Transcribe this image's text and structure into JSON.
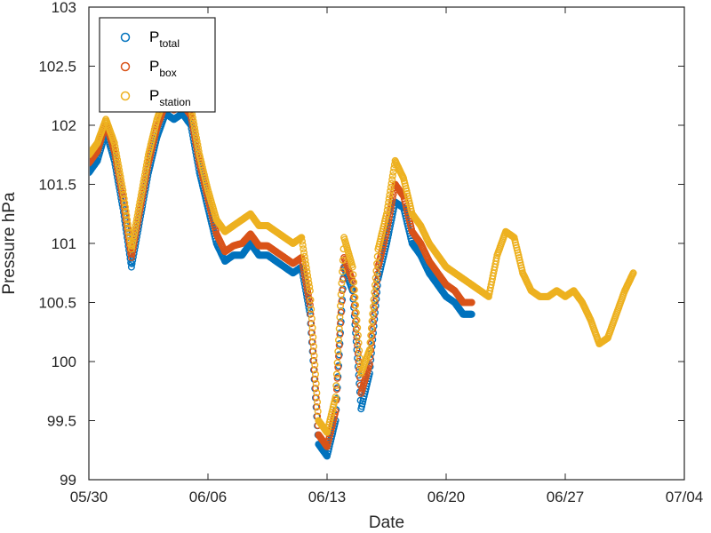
{
  "chart_data": {
    "type": "scatter",
    "xlabel": "Date",
    "ylabel": "Pressure hPa",
    "xlim": [
      "05/30",
      "07/04"
    ],
    "ylim": [
      99,
      103
    ],
    "x_ticks": [
      "05/30",
      "06/06",
      "06/13",
      "06/20",
      "06/27",
      "07/04"
    ],
    "y_ticks": [
      "99",
      "99.5",
      "100",
      "100.5",
      "101",
      "101.5",
      "102",
      "102.5",
      "103"
    ],
    "grid": false,
    "legend_position": "top-left",
    "marker": "open-circle",
    "series": [
      {
        "name": "P_total",
        "legend_main": "P",
        "legend_sub": "total",
        "color": "#0072BD",
        "points": [
          [
            "05/30",
            101.6
          ],
          [
            "05/30 12:00",
            101.7
          ],
          [
            "05/31",
            101.95
          ],
          [
            "05/31 12:00",
            101.7
          ],
          [
            "06/01",
            101.3
          ],
          [
            "06/01 12:00",
            100.8
          ],
          [
            "06/02",
            101.2
          ],
          [
            "06/02 12:00",
            101.6
          ],
          [
            "06/03",
            101.9
          ],
          [
            "06/03 12:00",
            102.1
          ],
          [
            "06/04",
            102.05
          ],
          [
            "06/04 12:00",
            102.1
          ],
          [
            "06/05",
            102.0
          ],
          [
            "06/05 12:00",
            101.6
          ],
          [
            "06/06",
            101.3
          ],
          [
            "06/06 12:00",
            101.0
          ],
          [
            "06/07",
            100.85
          ],
          [
            "06/07 12:00",
            100.9
          ],
          [
            "06/08",
            100.9
          ],
          [
            "06/08 12:00",
            101.0
          ],
          [
            "06/09",
            100.9
          ],
          [
            "06/09 12:00",
            100.9
          ],
          [
            "06/10",
            100.85
          ],
          [
            "06/10 12:00",
            100.8
          ],
          [
            "06/11",
            100.75
          ],
          [
            "06/11 12:00",
            100.8
          ],
          [
            "06/12",
            100.4
          ],
          [
            "06/12 12:00",
            99.3
          ],
          [
            "06/13",
            99.2
          ],
          [
            "06/13 12:00",
            99.5
          ],
          [
            "06/14",
            100.8
          ],
          [
            "06/14 12:00",
            100.6
          ],
          [
            "06/15",
            99.6
          ],
          [
            "06/15 12:00",
            99.9
          ],
          [
            "06/16",
            100.7
          ],
          [
            "06/16 12:00",
            101.0
          ],
          [
            "06/17",
            101.35
          ],
          [
            "06/17 12:00",
            101.3
          ],
          [
            "06/18",
            101.0
          ],
          [
            "06/18 12:00",
            100.9
          ],
          [
            "06/19",
            100.75
          ],
          [
            "06/19 12:00",
            100.65
          ],
          [
            "06/20",
            100.55
          ],
          [
            "06/20 12:00",
            100.5
          ],
          [
            "06/21",
            100.4
          ],
          [
            "06/21 12:00",
            100.4
          ]
        ]
      },
      {
        "name": "P_box",
        "legend_main": "P",
        "legend_sub": "box",
        "color": "#D95319",
        "points": [
          [
            "05/30",
            101.68
          ],
          [
            "05/30 12:00",
            101.78
          ],
          [
            "05/31",
            102.02
          ],
          [
            "05/31 12:00",
            101.78
          ],
          [
            "06/01",
            101.38
          ],
          [
            "06/01 12:00",
            100.88
          ],
          [
            "06/02",
            101.28
          ],
          [
            "06/02 12:00",
            101.68
          ],
          [
            "06/03",
            101.98
          ],
          [
            "06/03 12:00",
            102.18
          ],
          [
            "06/04",
            102.13
          ],
          [
            "06/04 12:00",
            102.18
          ],
          [
            "06/05",
            102.08
          ],
          [
            "06/05 12:00",
            101.68
          ],
          [
            "06/06",
            101.38
          ],
          [
            "06/06 12:00",
            101.08
          ],
          [
            "06/07",
            100.93
          ],
          [
            "06/07 12:00",
            100.98
          ],
          [
            "06/08",
            101.0
          ],
          [
            "06/08 12:00",
            101.08
          ],
          [
            "06/09",
            100.98
          ],
          [
            "06/09 12:00",
            100.98
          ],
          [
            "06/10",
            100.93
          ],
          [
            "06/10 12:00",
            100.88
          ],
          [
            "06/11",
            100.83
          ],
          [
            "06/11 12:00",
            100.88
          ],
          [
            "06/12",
            100.48
          ],
          [
            "06/12 12:00",
            99.38
          ],
          [
            "06/13",
            99.28
          ],
          [
            "06/13 12:00",
            99.58
          ],
          [
            "06/14",
            100.88
          ],
          [
            "06/14 12:00",
            100.68
          ],
          [
            "06/15",
            99.73
          ],
          [
            "06/15 12:00",
            99.98
          ],
          [
            "06/16",
            100.8
          ],
          [
            "06/16 12:00",
            101.1
          ],
          [
            "06/17",
            101.5
          ],
          [
            "06/17 12:00",
            101.4
          ],
          [
            "06/18",
            101.1
          ],
          [
            "06/18 12:00",
            101.0
          ],
          [
            "06/19",
            100.85
          ],
          [
            "06/19 12:00",
            100.75
          ],
          [
            "06/20",
            100.65
          ],
          [
            "06/20 12:00",
            100.6
          ],
          [
            "06/21",
            100.5
          ],
          [
            "06/21 12:00",
            100.5
          ]
        ]
      },
      {
        "name": "P_station",
        "legend_main": "P",
        "legend_sub": "station",
        "color": "#EDB120",
        "points": [
          [
            "05/30",
            101.75
          ],
          [
            "05/30 12:00",
            101.85
          ],
          [
            "05/31",
            102.05
          ],
          [
            "05/31 12:00",
            101.85
          ],
          [
            "06/01",
            101.45
          ],
          [
            "06/01 12:00",
            100.95
          ],
          [
            "06/02",
            101.35
          ],
          [
            "06/02 12:00",
            101.75
          ],
          [
            "06/03",
            102.05
          ],
          [
            "06/03 12:00",
            102.25
          ],
          [
            "06/04",
            102.2
          ],
          [
            "06/04 12:00",
            102.25
          ],
          [
            "06/05",
            102.15
          ],
          [
            "06/05 12:00",
            101.75
          ],
          [
            "06/06",
            101.45
          ],
          [
            "06/06 12:00",
            101.2
          ],
          [
            "06/07",
            101.1
          ],
          [
            "06/07 12:00",
            101.15
          ],
          [
            "06/08",
            101.2
          ],
          [
            "06/08 12:00",
            101.25
          ],
          [
            "06/09",
            101.15
          ],
          [
            "06/09 12:00",
            101.15
          ],
          [
            "06/10",
            101.1
          ],
          [
            "06/10 12:00",
            101.05
          ],
          [
            "06/11",
            101.0
          ],
          [
            "06/11 12:00",
            101.05
          ],
          [
            "06/12",
            100.6
          ],
          [
            "06/12 12:00",
            99.5
          ],
          [
            "06/13",
            99.4
          ],
          [
            "06/13 12:00",
            99.7
          ],
          [
            "06/14",
            101.05
          ],
          [
            "06/14 12:00",
            100.8
          ],
          [
            "06/15",
            99.9
          ],
          [
            "06/15 12:00",
            100.1
          ],
          [
            "06/16",
            100.95
          ],
          [
            "06/16 12:00",
            101.25
          ],
          [
            "06/17",
            101.7
          ],
          [
            "06/17 12:00",
            101.55
          ],
          [
            "06/18",
            101.25
          ],
          [
            "06/18 12:00",
            101.15
          ],
          [
            "06/19",
            101.0
          ],
          [
            "06/19 12:00",
            100.9
          ],
          [
            "06/20",
            100.8
          ],
          [
            "06/20 12:00",
            100.75
          ],
          [
            "06/21",
            100.7
          ],
          [
            "06/21 12:00",
            100.65
          ],
          [
            "06/22",
            100.6
          ],
          [
            "06/22 12:00",
            100.55
          ],
          [
            "06/23",
            100.9
          ],
          [
            "06/23 12:00",
            101.1
          ],
          [
            "06/24",
            101.05
          ],
          [
            "06/24 12:00",
            100.75
          ],
          [
            "06/25",
            100.6
          ],
          [
            "06/25 12:00",
            100.55
          ],
          [
            "06/26",
            100.55
          ],
          [
            "06/26 12:00",
            100.6
          ],
          [
            "06/27",
            100.55
          ],
          [
            "06/27 12:00",
            100.6
          ],
          [
            "06/28",
            100.5
          ],
          [
            "06/28 12:00",
            100.35
          ],
          [
            "06/29",
            100.15
          ],
          [
            "06/29 12:00",
            100.2
          ],
          [
            "06/30",
            100.4
          ],
          [
            "06/30 12:00",
            100.6
          ],
          [
            "07/01",
            100.75
          ]
        ]
      }
    ]
  }
}
